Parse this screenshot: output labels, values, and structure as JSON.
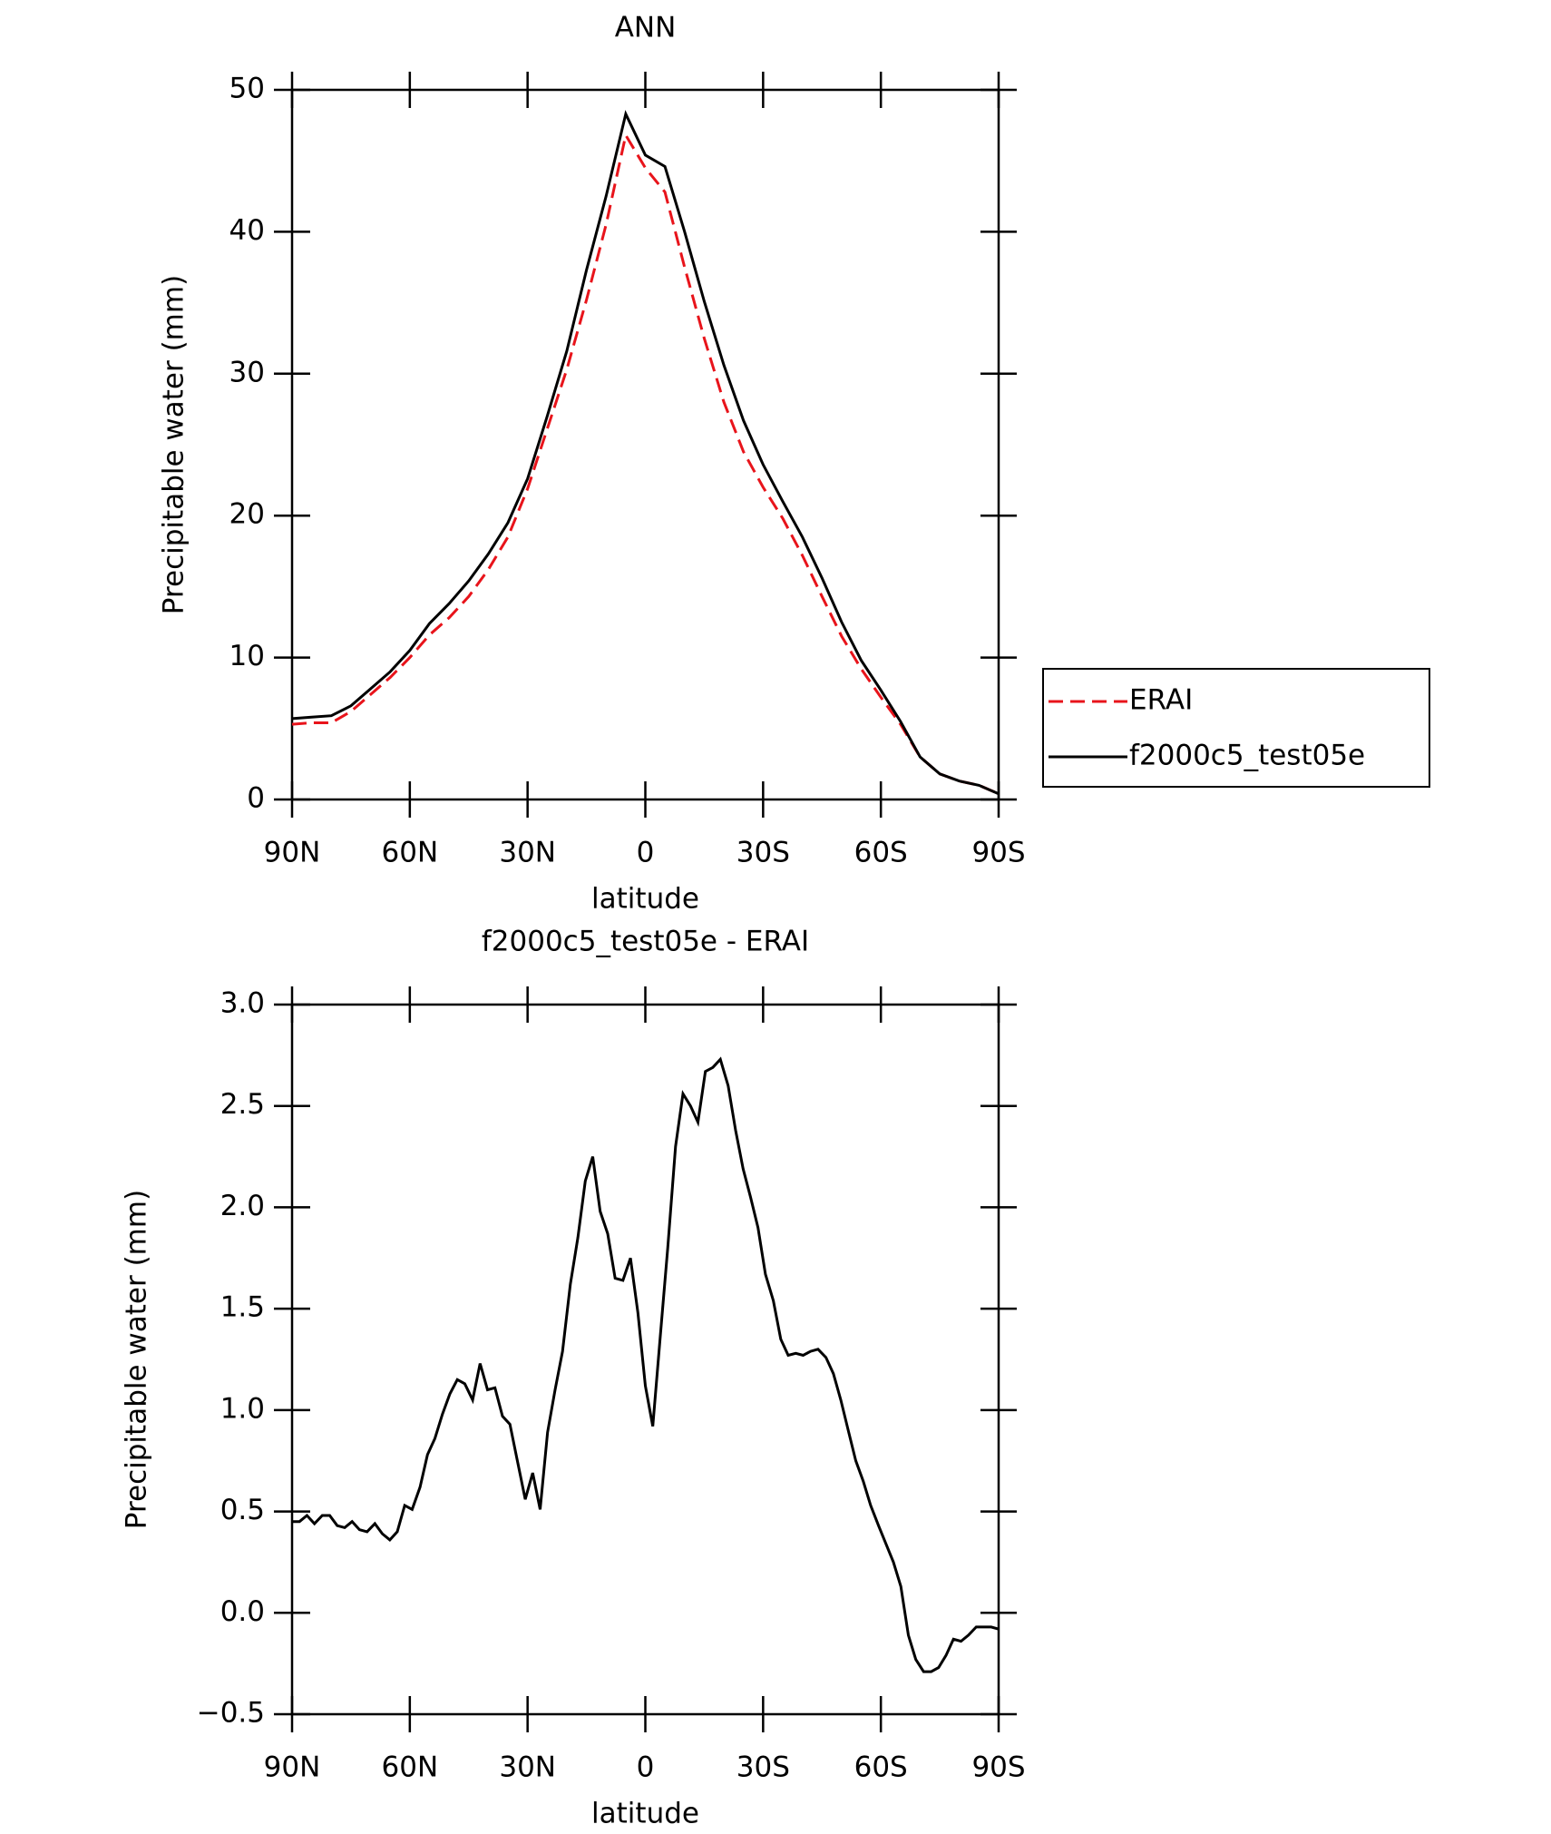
{
  "chart_data": [
    {
      "type": "line",
      "title": "ANN",
      "xlabel": "latitude",
      "ylabel": "Precipitable water (mm)",
      "x": [
        90,
        85,
        80,
        75,
        70,
        65,
        60,
        55,
        50,
        45,
        40,
        35,
        30,
        25,
        20,
        15,
        10,
        5,
        0,
        -5,
        -10,
        -15,
        -20,
        -25,
        -30,
        -35,
        -40,
        -45,
        -50,
        -55,
        -60,
        -65,
        -70,
        -75,
        -80,
        -85,
        -90
      ],
      "series": [
        {
          "name": "ERAI",
          "color": "#e8141b",
          "dash": true,
          "values": [
            5.3,
            5.4,
            5.4,
            6.2,
            7.4,
            8.6,
            10.0,
            11.6,
            12.8,
            14.3,
            16.2,
            18.5,
            21.9,
            26.1,
            30.3,
            35.2,
            40.5,
            46.8,
            44.5,
            42.8,
            37.5,
            32.5,
            28.0,
            24.5,
            22.0,
            19.8,
            17.2,
            14.3,
            11.5,
            9.2,
            7.2,
            5.3,
            3.0,
            1.8,
            1.3,
            1.0,
            0.4
          ]
        },
        {
          "name": "f2000c5_test05e",
          "color": "#000000",
          "dash": false,
          "values": [
            5.7,
            5.8,
            5.9,
            6.6,
            7.8,
            9.0,
            10.5,
            12.4,
            13.8,
            15.4,
            17.3,
            19.5,
            22.6,
            27.0,
            31.6,
            37.3,
            42.5,
            48.3,
            45.4,
            44.6,
            40.0,
            35.1,
            30.6,
            26.7,
            23.6,
            21.0,
            18.5,
            15.6,
            12.5,
            9.8,
            7.7,
            5.5,
            3.0,
            1.8,
            1.3,
            1.0,
            0.4
          ]
        }
      ],
      "xlim": [
        90,
        -90
      ],
      "xticks": [
        {
          "value": 90,
          "label": "90N"
        },
        {
          "value": 60,
          "label": "60N"
        },
        {
          "value": 30,
          "label": "30N"
        },
        0,
        {
          "value": -30,
          "label": "30S"
        },
        {
          "value": -60,
          "label": "60S"
        },
        {
          "value": -90,
          "label": "90S"
        }
      ],
      "ylim": [
        0,
        50
      ],
      "yticks": [
        0,
        10,
        20,
        30,
        40,
        50
      ],
      "legend": "right"
    },
    {
      "type": "line",
      "title": "f2000c5_test05e - ERAI",
      "xlabel": "latitude",
      "ylabel": "Precipitable water (mm)",
      "x": [
        90.0,
        88.1,
        86.2,
        84.3,
        82.3,
        80.4,
        78.5,
        76.6,
        74.7,
        72.8,
        70.9,
        68.9,
        67.0,
        65.1,
        63.2,
        61.3,
        59.4,
        57.4,
        55.5,
        53.6,
        51.7,
        49.8,
        47.9,
        46.0,
        44.0,
        42.1,
        40.2,
        38.3,
        36.4,
        34.5,
        32.6,
        30.6,
        28.7,
        26.8,
        24.9,
        23.0,
        21.1,
        19.1,
        17.2,
        15.3,
        13.4,
        11.5,
        9.6,
        7.7,
        5.7,
        3.8,
        1.9,
        0.0,
        -1.9,
        -3.8,
        -5.7,
        -7.7,
        -9.6,
        -11.5,
        -13.4,
        -15.3,
        -17.2,
        -19.1,
        -21.1,
        -23.0,
        -24.9,
        -26.8,
        -28.7,
        -30.6,
        -32.6,
        -34.5,
        -36.4,
        -38.3,
        -40.2,
        -42.1,
        -44.0,
        -46.0,
        -47.9,
        -49.8,
        -51.7,
        -53.6,
        -55.5,
        -57.4,
        -59.4,
        -61.3,
        -63.2,
        -65.1,
        -67.0,
        -68.9,
        -70.9,
        -72.8,
        -74.7,
        -76.6,
        -78.5,
        -80.4,
        -82.3,
        -84.3,
        -86.2,
        -88.1,
        -90.0
      ],
      "series": [
        {
          "color": "#000000",
          "dash": false,
          "values": [
            0.45,
            0.45,
            0.48,
            0.44,
            0.48,
            0.48,
            0.43,
            0.42,
            0.45,
            0.41,
            0.4,
            0.44,
            0.39,
            0.36,
            0.4,
            0.53,
            0.51,
            0.62,
            0.78,
            0.86,
            0.98,
            1.08,
            1.15,
            1.13,
            1.05,
            1.23,
            1.1,
            1.11,
            0.97,
            0.93,
            0.75,
            0.56,
            0.69,
            0.51,
            0.89,
            1.1,
            1.29,
            1.62,
            1.85,
            2.13,
            2.25,
            1.98,
            1.87,
            1.65,
            1.64,
            1.75,
            1.48,
            1.12,
            0.92,
            1.36,
            1.8,
            2.3,
            2.56,
            2.5,
            2.42,
            2.67,
            2.69,
            2.73,
            2.6,
            2.38,
            2.19,
            2.05,
            1.9,
            1.67,
            1.54,
            1.35,
            1.27,
            1.28,
            1.27,
            1.29,
            1.3,
            1.26,
            1.18,
            1.05,
            0.9,
            0.75,
            0.65,
            0.53,
            0.43,
            0.34,
            0.25,
            0.13,
            -0.11,
            -0.23,
            -0.29,
            -0.29,
            -0.27,
            -0.21,
            -0.13,
            -0.14,
            -0.11,
            -0.07,
            -0.07,
            -0.07,
            -0.08
          ]
        }
      ],
      "xlim": [
        90,
        -90
      ],
      "xticks": [
        {
          "value": 90,
          "label": "90N"
        },
        {
          "value": 60,
          "label": "60N"
        },
        {
          "value": 30,
          "label": "30N"
        },
        0,
        {
          "value": -30,
          "label": "30S"
        },
        {
          "value": -60,
          "label": "60S"
        },
        {
          "value": -90,
          "label": "90S"
        }
      ],
      "ylim": [
        -0.5,
        3.0
      ],
      "yticks": [
        {
          "value": -0.5,
          "label": "−0.5"
        },
        {
          "value": 0,
          "label": "0.0"
        },
        0.5,
        {
          "value": 1,
          "label": "1.0"
        },
        1.5,
        {
          "value": 2,
          "label": "2.0"
        },
        2.5,
        {
          "value": 3,
          "label": "3.0"
        }
      ]
    }
  ]
}
